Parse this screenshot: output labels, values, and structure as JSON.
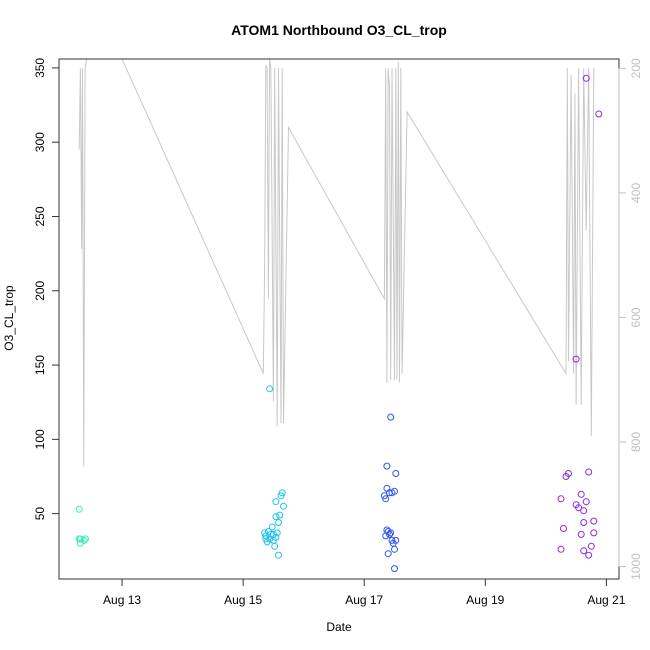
{
  "chart_data": {
    "type": "scatter",
    "title": "ATOM1 Northbound O3_CL_trop",
    "xlabel": "Date",
    "ylabel": "O3_CL_trop",
    "xlim": [
      "2016-08-11T23:00",
      "2016-08-21T05:00"
    ],
    "ylim": [
      6,
      356
    ],
    "y2lim": [
      1020,
      185
    ],
    "y2_reversed": true,
    "x_ticks": [
      {
        "t": "2016-08-13T00:00",
        "label": "Aug 13"
      },
      {
        "t": "2016-08-15T00:00",
        "label": "Aug 15"
      },
      {
        "t": "2016-08-17T00:00",
        "label": "Aug 17"
      },
      {
        "t": "2016-08-19T00:00",
        "label": "Aug 19"
      },
      {
        "t": "2016-08-21T00:00",
        "label": "Aug 21"
      }
    ],
    "y_ticks": [
      50,
      100,
      150,
      200,
      250,
      300,
      350
    ],
    "y2_ticks": [
      200,
      400,
      600,
      800,
      1000
    ],
    "colors": {
      "flight1": "#2ef0b8",
      "flight2": "#22c3ee",
      "flight3": "#2f55ee",
      "flight4": "#8a2be2",
      "pressure_line": "#c8c8c8",
      "axis": "#333333",
      "axis2": "#c0c0c0"
    },
    "pressure_trace": [
      [
        "2016-08-12T07:00",
        330
      ],
      [
        "2016-08-12T07:30",
        200
      ],
      [
        "2016-08-12T08:00",
        490
      ],
      [
        "2016-08-12T08:20",
        200
      ],
      [
        "2016-08-12T08:50",
        840
      ],
      [
        "2016-08-12T09:20",
        200
      ],
      [
        "2016-08-12T10:00",
        185
      ],
      [
        "2016-08-13T00:00",
        185
      ],
      [
        "2016-08-15T08:00",
        690
      ],
      [
        "2016-08-15T08:30",
        525
      ],
      [
        "2016-08-15T09:00",
        195
      ],
      [
        "2016-08-15T09:30",
        200
      ],
      [
        "2016-08-15T10:00",
        570
      ],
      [
        "2016-08-15T10:30",
        185
      ],
      [
        "2016-08-15T11:00",
        200
      ],
      [
        "2016-08-15T12:00",
        735
      ],
      [
        "2016-08-15T12:30",
        200
      ],
      [
        "2016-08-15T13:30",
        775
      ],
      [
        "2016-08-15T14:00",
        200
      ],
      [
        "2016-08-15T15:00",
        770
      ],
      [
        "2016-08-15T15:30",
        200
      ],
      [
        "2016-08-15T16:00",
        770
      ],
      [
        "2016-08-15T18:00",
        295
      ],
      [
        "2016-08-17T08:00",
        570
      ],
      [
        "2016-08-17T08:30",
        200
      ],
      [
        "2016-08-17T09:00",
        705
      ],
      [
        "2016-08-17T09:30",
        200
      ],
      [
        "2016-08-17T10:00",
        230
      ],
      [
        "2016-08-17T10:30",
        700
      ],
      [
        "2016-08-17T11:00",
        200
      ],
      [
        "2016-08-17T12:00",
        700
      ],
      [
        "2016-08-17T12:30",
        200
      ],
      [
        "2016-08-17T13:00",
        700
      ],
      [
        "2016-08-17T13:30",
        190
      ],
      [
        "2016-08-17T14:00",
        705
      ],
      [
        "2016-08-17T14:30",
        200
      ],
      [
        "2016-08-17T15:00",
        690
      ],
      [
        "2016-08-17T17:00",
        270
      ],
      [
        "2016-08-20T08:00",
        690
      ],
      [
        "2016-08-20T08:30",
        200
      ],
      [
        "2016-08-20T09:00",
        670
      ],
      [
        "2016-08-20T10:00",
        210
      ],
      [
        "2016-08-20T11:00",
        690
      ],
      [
        "2016-08-20T11:30",
        240
      ],
      [
        "2016-08-20T12:00",
        740
      ],
      [
        "2016-08-20T13:00",
        200
      ],
      [
        "2016-08-20T14:00",
        740
      ],
      [
        "2016-08-20T15:00",
        200
      ],
      [
        "2016-08-20T16:00",
        460
      ],
      [
        "2016-08-20T17:00",
        200
      ],
      [
        "2016-08-20T18:00",
        790
      ],
      [
        "2016-08-20T19:00",
        200
      ]
    ],
    "series": [
      {
        "values": [
          [
            "2016-08-12T07:00",
            53
          ],
          [
            "2016-08-12T07:00",
            33
          ],
          [
            "2016-08-12T07:30",
            33
          ],
          [
            "2016-08-12T07:30",
            30
          ],
          [
            "2016-08-12T09:00",
            32
          ],
          [
            "2016-08-12T09:30",
            33
          ]
        ]
      },
      {
        "values": [
          [
            "2016-08-15T10:30",
            134
          ],
          [
            "2016-08-15T08:30",
            37
          ],
          [
            "2016-08-15T09:00",
            35
          ],
          [
            "2016-08-15T09:00",
            33
          ],
          [
            "2016-08-15T09:30",
            31
          ],
          [
            "2016-08-15T10:00",
            38
          ],
          [
            "2016-08-15T10:30",
            33
          ],
          [
            "2016-08-15T11:00",
            36
          ],
          [
            "2016-08-15T11:30",
            41
          ],
          [
            "2016-08-15T12:00",
            32
          ],
          [
            "2016-08-15T12:30",
            28
          ],
          [
            "2016-08-15T13:00",
            48
          ],
          [
            "2016-08-15T13:00",
            58
          ],
          [
            "2016-08-15T13:30",
            37
          ],
          [
            "2016-08-15T14:00",
            44
          ],
          [
            "2016-08-15T14:00",
            22
          ],
          [
            "2016-08-15T14:30",
            49
          ],
          [
            "2016-08-15T15:00",
            62
          ],
          [
            "2016-08-15T15:30",
            64
          ],
          [
            "2016-08-15T16:00",
            55
          ],
          [
            "2016-08-15T13:00",
            34
          ],
          [
            "2016-08-15T12:00",
            36
          ]
        ]
      },
      {
        "values": [
          [
            "2016-08-17T10:30",
            115
          ],
          [
            "2016-08-17T09:00",
            82
          ],
          [
            "2016-08-17T08:00",
            62
          ],
          [
            "2016-08-17T08:30",
            60
          ],
          [
            "2016-08-17T09:00",
            67
          ],
          [
            "2016-08-17T10:00",
            64
          ],
          [
            "2016-08-17T11:00",
            64
          ],
          [
            "2016-08-17T12:00",
            65
          ],
          [
            "2016-08-17T12:30",
            77
          ],
          [
            "2016-08-17T09:00",
            39
          ],
          [
            "2016-08-17T09:30",
            38
          ],
          [
            "2016-08-17T10:00",
            36
          ],
          [
            "2016-08-17T10:30",
            37
          ],
          [
            "2016-08-17T11:00",
            32
          ],
          [
            "2016-08-17T11:30",
            30
          ],
          [
            "2016-08-17T12:00",
            26
          ],
          [
            "2016-08-17T09:30",
            23
          ],
          [
            "2016-08-17T12:00",
            13
          ],
          [
            "2016-08-17T08:30",
            35
          ],
          [
            "2016-08-17T12:30",
            32
          ]
        ]
      },
      {
        "values": [
          [
            "2016-08-20T16:00",
            343
          ],
          [
            "2016-08-20T21:00",
            319
          ],
          [
            "2016-08-20T12:00",
            154
          ],
          [
            "2016-08-20T08:00",
            75
          ],
          [
            "2016-08-20T09:00",
            77
          ],
          [
            "2016-08-20T17:00",
            78
          ],
          [
            "2016-08-20T06:00",
            60
          ],
          [
            "2016-08-20T14:00",
            63
          ],
          [
            "2016-08-20T16:00",
            58
          ],
          [
            "2016-08-20T12:00",
            56
          ],
          [
            "2016-08-20T13:00",
            54
          ],
          [
            "2016-08-20T15:00",
            52
          ],
          [
            "2016-08-20T19:00",
            45
          ],
          [
            "2016-08-20T15:00",
            44
          ],
          [
            "2016-08-20T07:00",
            40
          ],
          [
            "2016-08-20T14:00",
            36
          ],
          [
            "2016-08-20T19:00",
            37
          ],
          [
            "2016-08-20T18:00",
            28
          ],
          [
            "2016-08-20T06:00",
            26
          ],
          [
            "2016-08-20T15:00",
            25
          ],
          [
            "2016-08-20T17:00",
            22
          ]
        ]
      }
    ]
  }
}
